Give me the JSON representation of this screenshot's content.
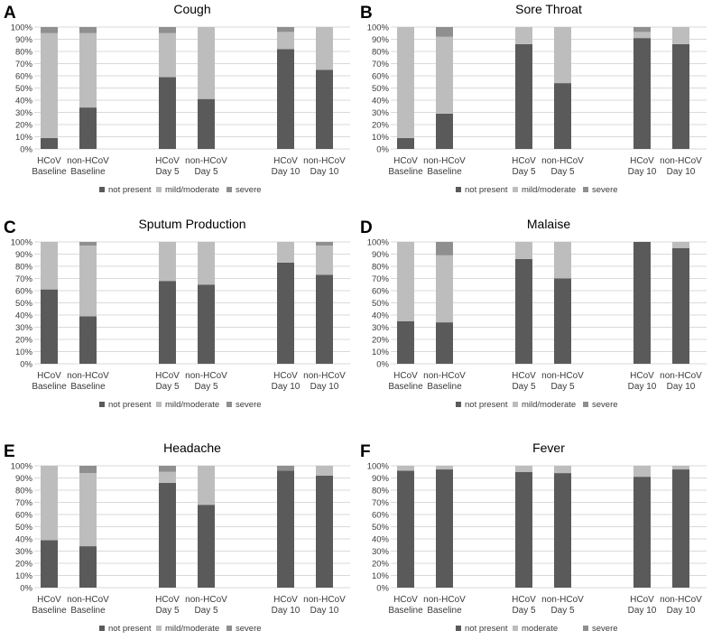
{
  "colors": {
    "not_present": "#5a5a5a",
    "mild": "#bdbdbd",
    "severe": "#8f8f8f",
    "grid": "#d9d9d9",
    "axis_text": "#3a3a3a"
  },
  "chart_data": [
    {
      "panel": "A",
      "type": "bar",
      "stacked": "percent",
      "title": "Cough",
      "categories": [
        [
          "HCoV",
          "Baseline"
        ],
        [
          "non-HCoV",
          "Baseline"
        ],
        [
          "HCoV",
          "Day 5"
        ],
        [
          "non-HCoV",
          "Day 5"
        ],
        [
          "HCoV",
          "Day 10"
        ],
        [
          "non-HCoV",
          "Day 10"
        ]
      ],
      "yticks": [
        "0%",
        "10%",
        "20%",
        "30%",
        "40%",
        "50%",
        "60%",
        "70%",
        "80%",
        "90%",
        "100%"
      ],
      "ylim": [
        0,
        100
      ],
      "legend_position": "bottom",
      "series": [
        {
          "name": "not present",
          "color_key": "not_present",
          "values": [
            9,
            34,
            59,
            41,
            82,
            65
          ]
        },
        {
          "name": "mild/moderate",
          "color_key": "mild",
          "values": [
            86,
            61,
            36,
            59,
            14,
            35
          ]
        },
        {
          "name": "severe",
          "color_key": "severe",
          "values": [
            5,
            5,
            5,
            0,
            4,
            0
          ]
        }
      ]
    },
    {
      "panel": "B",
      "type": "bar",
      "stacked": "percent",
      "title": "Sore Throat",
      "categories": [
        [
          "HCoV",
          "Baseline"
        ],
        [
          "non-HCoV",
          "Baseline"
        ],
        [
          "HCoV",
          "Day 5"
        ],
        [
          "non-HCoV",
          "Day 5"
        ],
        [
          "HCoV",
          "Day 10"
        ],
        [
          "non-HCoV",
          "Day 10"
        ]
      ],
      "yticks": [
        "0%",
        "10%",
        "20%",
        "30%",
        "40%",
        "50%",
        "60%",
        "70%",
        "80%",
        "90%",
        "100%"
      ],
      "ylim": [
        0,
        100
      ],
      "legend_position": "bottom",
      "series": [
        {
          "name": "not present",
          "color_key": "not_present",
          "values": [
            9,
            29,
            86,
            54,
            91,
            86
          ]
        },
        {
          "name": "mild/moderate",
          "color_key": "mild",
          "values": [
            91,
            63,
            14,
            46,
            5,
            14
          ]
        },
        {
          "name": "severe",
          "color_key": "severe",
          "values": [
            0,
            8,
            0,
            0,
            4,
            0
          ]
        }
      ]
    },
    {
      "panel": "C",
      "type": "bar",
      "stacked": "percent",
      "title": "Sputum Production",
      "categories": [
        [
          "HCoV",
          "Baseline"
        ],
        [
          "non-HCoV",
          "Baseline"
        ],
        [
          "HCoV",
          "Day 5"
        ],
        [
          "non-HCoV",
          "Day 5"
        ],
        [
          "HCoV",
          "Day 10"
        ],
        [
          "non-HCoV",
          "Day 10"
        ]
      ],
      "yticks": [
        "0%",
        "10%",
        "20%",
        "30%",
        "40%",
        "50%",
        "60%",
        "70%",
        "80%",
        "90%",
        "100%"
      ],
      "ylim": [
        0,
        100
      ],
      "legend_position": "bottom",
      "series": [
        {
          "name": "not present",
          "color_key": "not_present",
          "values": [
            61,
            39,
            68,
            65,
            83,
            73
          ]
        },
        {
          "name": "mild/moderate",
          "color_key": "mild",
          "values": [
            39,
            58,
            32,
            35,
            17,
            24
          ]
        },
        {
          "name": "severe",
          "color_key": "severe",
          "values": [
            0,
            3,
            0,
            0,
            0,
            3
          ]
        }
      ]
    },
    {
      "panel": "D",
      "type": "bar",
      "stacked": "percent",
      "title": "Malaise",
      "categories": [
        [
          "HCoV",
          "Baseline"
        ],
        [
          "non-HCoV",
          "Baseline"
        ],
        [
          "HCoV",
          "Day 5"
        ],
        [
          "non-HCoV",
          "Day 5"
        ],
        [
          "HCoV",
          "Day 10"
        ],
        [
          "non-HCoV",
          "Day 10"
        ]
      ],
      "yticks": [
        "0%",
        "10%",
        "20%",
        "30%",
        "40%",
        "50%",
        "60%",
        "70%",
        "80%",
        "90%",
        "100%"
      ],
      "ylim": [
        0,
        100
      ],
      "legend_position": "bottom",
      "series": [
        {
          "name": "not present",
          "color_key": "not_present",
          "values": [
            35,
            34,
            86,
            70,
            100,
            95
          ]
        },
        {
          "name": "mild/moderate",
          "color_key": "mild",
          "values": [
            65,
            55,
            14,
            30,
            0,
            5
          ]
        },
        {
          "name": "severe",
          "color_key": "severe",
          "values": [
            0,
            11,
            0,
            0,
            0,
            0
          ]
        }
      ]
    },
    {
      "panel": "E",
      "type": "bar",
      "stacked": "percent",
      "title": "Headache",
      "categories": [
        [
          "HCoV",
          "Baseline"
        ],
        [
          "non-HCoV",
          "Baseline"
        ],
        [
          "HCoV",
          "Day 5"
        ],
        [
          "non-HCoV",
          "Day 5"
        ],
        [
          "HCoV",
          "Day 10"
        ],
        [
          "non-HCoV",
          "Day 10"
        ]
      ],
      "yticks": [
        "0%",
        "10%",
        "20%",
        "30%",
        "40%",
        "50%",
        "60%",
        "70%",
        "80%",
        "90%",
        "100%"
      ],
      "ylim": [
        0,
        100
      ],
      "legend_position": "bottom",
      "series": [
        {
          "name": "not present",
          "color_key": "not_present",
          "values": [
            39,
            34,
            86,
            68,
            96,
            92
          ]
        },
        {
          "name": "mild/moderate",
          "color_key": "mild",
          "values": [
            61,
            60,
            9,
            32,
            0,
            8
          ]
        },
        {
          "name": "severe",
          "color_key": "severe",
          "values": [
            0,
            6,
            5,
            0,
            4,
            0
          ]
        }
      ]
    },
    {
      "panel": "F",
      "type": "bar",
      "stacked": "percent",
      "title": "Fever",
      "categories": [
        [
          "HCoV",
          "Baseline"
        ],
        [
          "non-HCoV",
          "Baseline"
        ],
        [
          "HCoV",
          "Day 5"
        ],
        [
          "non-HCoV",
          "Day 5"
        ],
        [
          "HCoV",
          "Day 10"
        ],
        [
          "non-HCoV",
          "Day 10"
        ]
      ],
      "yticks": [
        "0%",
        "10%",
        "20%",
        "30%",
        "40%",
        "50%",
        "60%",
        "70%",
        "80%",
        "90%",
        "100%"
      ],
      "ylim": [
        0,
        100
      ],
      "legend_position": "bottom",
      "series": [
        {
          "name": "not present",
          "color_key": "not_present",
          "values": [
            96,
            97,
            95,
            94,
            91,
            97
          ]
        },
        {
          "name": "moderate",
          "color_key": "mild",
          "values": [
            4,
            3,
            5,
            6,
            9,
            3
          ]
        },
        {
          "name": "severe",
          "color_key": "severe",
          "values": [
            0,
            0,
            0,
            0,
            0,
            0
          ]
        }
      ]
    }
  ]
}
